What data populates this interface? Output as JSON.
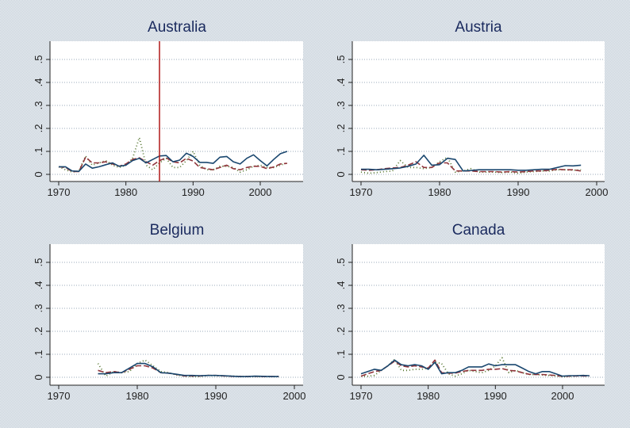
{
  "chart_data": [
    {
      "type": "line",
      "title": "Australia",
      "xlim": [
        1970,
        2004
      ],
      "xticks": [
        1970,
        1980,
        1990,
        2000
      ],
      "ylim": [
        0,
        0.5
      ],
      "yticks": [
        0,
        0.1,
        0.2,
        0.3,
        0.4,
        0.5
      ],
      "ytick_labels": [
        "0",
        ".1",
        ".2",
        ".3",
        ".4",
        ".5"
      ],
      "grid": true,
      "vline": 1985,
      "x_start": 1970,
      "series": [
        {
          "name": "solid",
          "values": [
            0.033,
            0.033,
            0.015,
            0.013,
            0.045,
            0.027,
            0.033,
            0.042,
            0.05,
            0.035,
            0.04,
            0.06,
            0.07,
            0.05,
            0.065,
            0.08,
            0.082,
            0.055,
            0.062,
            0.092,
            0.078,
            0.052,
            0.052,
            0.048,
            0.075,
            0.078,
            0.055,
            0.045,
            0.07,
            0.085,
            0.06,
            0.037,
            0.065,
            0.09,
            0.1
          ]
        },
        {
          "name": "dashed",
          "values": [
            0.033,
            0.03,
            0.012,
            0.012,
            0.075,
            0.05,
            0.05,
            0.055,
            0.045,
            0.035,
            0.045,
            0.065,
            0.072,
            0.055,
            0.04,
            0.06,
            0.072,
            0.055,
            0.05,
            0.07,
            0.058,
            0.03,
            0.025,
            0.02,
            0.03,
            0.04,
            0.025,
            0.02,
            0.03,
            0.035,
            0.035,
            0.025,
            0.032,
            0.045,
            0.048
          ]
        },
        {
          "name": "dotted",
          "values": [
            0.033,
            0.02,
            0.01,
            0.015,
            0.08,
            0.04,
            0.05,
            0.06,
            0.04,
            0.03,
            0.04,
            0.07,
            0.16,
            0.04,
            0.02,
            0.05,
            0.07,
            0.03,
            0.03,
            0.06,
            0.1,
            0.04,
            0.02,
            0.02,
            0.035,
            0.035,
            0.03,
            0.01,
            0.02,
            0.035,
            0.04,
            0.03,
            0.03,
            0.04,
            0.05
          ]
        }
      ]
    },
    {
      "type": "line",
      "title": "Austria",
      "xlim": [
        1970,
        2000
      ],
      "xticks": [
        1970,
        1980,
        1990,
        2000
      ],
      "ylim": [
        0,
        0.5
      ],
      "yticks": [
        0,
        0.1,
        0.2,
        0.3,
        0.4,
        0.5
      ],
      "ytick_labels": [
        "0",
        ".1",
        ".2",
        ".3",
        ".4",
        ".5"
      ],
      "grid": true,
      "x_start": 1970,
      "series": [
        {
          "name": "solid",
          "values": [
            0.022,
            0.022,
            0.02,
            0.022,
            0.025,
            0.028,
            0.035,
            0.045,
            0.083,
            0.04,
            0.042,
            0.07,
            0.065,
            0.015,
            0.017,
            0.02,
            0.02,
            0.02,
            0.02,
            0.02,
            0.018,
            0.018,
            0.02,
            0.022,
            0.022,
            0.03,
            0.038,
            0.037,
            0.04
          ]
        },
        {
          "name": "dashed",
          "values": [
            0.02,
            0.018,
            0.02,
            0.025,
            0.028,
            0.03,
            0.04,
            0.055,
            0.03,
            0.03,
            0.05,
            0.05,
            0.015,
            0.015,
            0.015,
            0.012,
            0.012,
            0.012,
            0.01,
            0.012,
            0.01,
            0.012,
            0.015,
            0.015,
            0.018,
            0.022,
            0.02,
            0.02,
            0.015
          ]
        },
        {
          "name": "dotted",
          "values": [
            0.01,
            0.005,
            0.008,
            0.012,
            0.015,
            0.06,
            0.03,
            0.03,
            0.025,
            0.03,
            0.055,
            0.075,
            0.01,
            0.015,
            0.025,
            0.01,
            0.01,
            0.01,
            0.008,
            0.01,
            0.005,
            0.01,
            0.012,
            0.015,
            0.015,
            0.02,
            0.02,
            0.018,
            0.02
          ]
        }
      ]
    },
    {
      "type": "line",
      "title": "Belgium",
      "xlim": [
        1970,
        2000
      ],
      "xticks": [
        1970,
        1980,
        1990,
        2000
      ],
      "ylim": [
        0,
        0.5
      ],
      "yticks": [
        0,
        0.1,
        0.2,
        0.3,
        0.4,
        0.5
      ],
      "ytick_labels": [
        "0",
        ".1",
        ".2",
        ".3",
        ".4",
        ".5"
      ],
      "grid": true,
      "x_start": 1975,
      "series": [
        {
          "name": "solid",
          "values": [
            0.015,
            0.015,
            0.02,
            0.02,
            0.04,
            0.06,
            0.06,
            0.045,
            0.02,
            0.018,
            0.013,
            0.008,
            0.008,
            0.007,
            0.008,
            0.008,
            0.007,
            0.005,
            0.003,
            0.003,
            0.005,
            0.004,
            0.003,
            0.003
          ]
        },
        {
          "name": "dashed",
          "values": [
            0.03,
            0.02,
            0.025,
            0.02,
            0.035,
            0.05,
            0.05,
            0.04,
            0.02,
            0.018,
            0.012,
            0.006,
            0.006,
            0.006,
            0.008,
            0.008,
            0.006,
            0.004,
            0.003,
            0.003,
            0.004,
            0.003,
            0.003,
            0.003
          ]
        },
        {
          "name": "dotted",
          "values": [
            0.06,
            0.005,
            0.025,
            0.02,
            0.025,
            0.06,
            0.075,
            0.05,
            0.025,
            0.02,
            0.01,
            0.005,
            0.003,
            0.003,
            0.008,
            0.007,
            0.006,
            0.005,
            0.004,
            0.003,
            0.003,
            0.003,
            0.003,
            0.003
          ]
        }
      ]
    },
    {
      "type": "line",
      "title": "Canada",
      "xlim": [
        1970,
        2004
      ],
      "xticks": [
        1970,
        1980,
        1990,
        2000
      ],
      "ylim": [
        0,
        0.5
      ],
      "yticks": [
        0,
        0.1,
        0.2,
        0.3,
        0.4,
        0.5
      ],
      "ytick_labels": [
        "0",
        ".1",
        ".2",
        ".3",
        ".4",
        ".5"
      ],
      "grid": true,
      "x_start": 1970,
      "series": [
        {
          "name": "solid",
          "values": [
            0.015,
            0.025,
            0.035,
            0.03,
            0.05,
            0.075,
            0.055,
            0.05,
            0.055,
            0.05,
            0.035,
            0.065,
            0.015,
            0.02,
            0.02,
            0.03,
            0.045,
            0.045,
            0.045,
            0.058,
            0.05,
            0.055,
            0.055,
            0.055,
            0.04,
            0.025,
            0.015,
            0.025,
            0.025,
            0.015,
            0.005,
            0.007,
            0.007,
            0.008,
            0.007
          ]
        },
        {
          "name": "dashed",
          "values": [
            0.005,
            0.015,
            0.025,
            0.03,
            0.05,
            0.07,
            0.05,
            0.045,
            0.05,
            0.045,
            0.04,
            0.075,
            0.02,
            0.018,
            0.018,
            0.025,
            0.03,
            0.03,
            0.03,
            0.035,
            0.035,
            0.038,
            0.03,
            0.028,
            0.02,
            0.013,
            0.012,
            0.012,
            0.01,
            0.008,
            0.004,
            0.005,
            0.006,
            0.006,
            0.005
          ]
        },
        {
          "name": "dotted",
          "values": [
            0.005,
            0.005,
            0.008,
            0.03,
            0.05,
            0.078,
            0.03,
            0.03,
            0.035,
            0.035,
            0.04,
            0.065,
            0.06,
            0.015,
            0.005,
            0.015,
            0.03,
            0.025,
            0.02,
            0.03,
            0.05,
            0.085,
            0.02,
            0.03,
            0.02,
            0.012,
            0.012,
            0.01,
            0.008,
            0.006,
            0.002,
            0.004,
            0.006,
            0.008,
            0.007
          ]
        }
      ]
    }
  ],
  "colors": {
    "solid": "#1a476f",
    "dashed": "#90353b",
    "dotted": "#55752f",
    "vline": "#b01818",
    "title": "#1a2a5e"
  }
}
